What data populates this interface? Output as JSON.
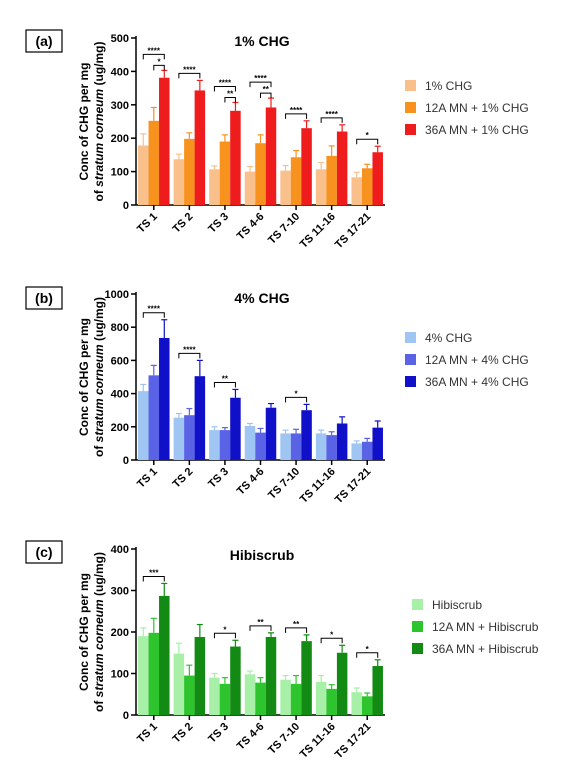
{
  "chart_data": [
    {
      "type": "bar",
      "panel_label": "(a)",
      "title": "1% CHG",
      "ylabel_line1": "Conc of CHG per mg",
      "ylabel_line2_prefix": "of ",
      "ylabel_line2_italic": "stratum corneum",
      "ylabel_line2_suffix": " (ug/mg)",
      "categories": [
        "TS 1",
        "TS 2",
        "TS 3",
        "TS 4-6",
        "TS 7-10",
        "TS 11-16",
        "TS 17-21"
      ],
      "ylim": [
        0,
        500
      ],
      "yticks": [
        0,
        100,
        200,
        300,
        400,
        500
      ],
      "series": [
        {
          "name": "1% CHG",
          "color": "#f9c08c",
          "values": [
            178,
            137,
            107,
            100,
            103,
            107,
            83
          ],
          "errors": [
            35,
            15,
            10,
            15,
            15,
            20,
            15
          ]
        },
        {
          "name": "12A MN + 1% CHG",
          "color": "#f7921e",
          "values": [
            252,
            198,
            190,
            185,
            143,
            147,
            110
          ],
          "errors": [
            40,
            18,
            20,
            25,
            20,
            30,
            12
          ]
        },
        {
          "name": "36A MN + 1% CHG",
          "color": "#ee1c1c",
          "values": [
            381,
            343,
            282,
            292,
            230,
            220,
            158
          ],
          "errors": [
            22,
            30,
            25,
            28,
            22,
            20,
            18
          ]
        }
      ],
      "significance": [
        {
          "category": "TS 1",
          "from": 0,
          "to": 2,
          "label": "****",
          "level": 0
        },
        {
          "category": "TS 1",
          "from": 1,
          "to": 2,
          "label": "*",
          "level": 1
        },
        {
          "category": "TS 2",
          "from": 0,
          "to": 2,
          "label": "****",
          "level": 0
        },
        {
          "category": "TS 3",
          "from": 0,
          "to": 2,
          "label": "****",
          "level": 0
        },
        {
          "category": "TS 3",
          "from": 1,
          "to": 2,
          "label": "**",
          "level": 1
        },
        {
          "category": "TS 4-6",
          "from": 0,
          "to": 2,
          "label": "****",
          "level": 0
        },
        {
          "category": "TS 4-6",
          "from": 1,
          "to": 2,
          "label": "**",
          "level": 1
        },
        {
          "category": "TS 7-10",
          "from": 0,
          "to": 2,
          "label": "****",
          "level": 0
        },
        {
          "category": "TS 11-16",
          "from": 0,
          "to": 2,
          "label": "****",
          "level": 0
        },
        {
          "category": "TS 17-21",
          "from": 0,
          "to": 2,
          "label": "*",
          "level": 0
        }
      ]
    },
    {
      "type": "bar",
      "panel_label": "(b)",
      "title": "4% CHG",
      "ylabel_line1": "Conc of CHG per mg",
      "ylabel_line2_prefix": "of ",
      "ylabel_line2_italic": "stratum corneum",
      "ylabel_line2_suffix": " (ug/mg)",
      "categories": [
        "TS 1",
        "TS 2",
        "TS 3",
        "TS 4-6",
        "TS 7-10",
        "TS 11-16",
        "TS 17-21"
      ],
      "ylim": [
        0,
        1000
      ],
      "yticks": [
        0,
        200,
        400,
        600,
        800,
        1000
      ],
      "series": [
        {
          "name": "4% CHG",
          "color": "#9fc5f3",
          "values": [
            415,
            255,
            180,
            205,
            160,
            160,
            100
          ],
          "errors": [
            40,
            25,
            20,
            15,
            20,
            20,
            15
          ]
        },
        {
          "name": "12A MN + 4% CHG",
          "color": "#5a62e6",
          "values": [
            510,
            270,
            180,
            165,
            160,
            150,
            110
          ],
          "errors": [
            60,
            40,
            15,
            25,
            25,
            20,
            20
          ]
        },
        {
          "name": "36A MN + 4% CHG",
          "color": "#1010c8",
          "values": [
            735,
            505,
            375,
            315,
            300,
            220,
            195
          ],
          "errors": [
            110,
            95,
            50,
            25,
            35,
            40,
            40
          ]
        }
      ],
      "significance": [
        {
          "category": "TS 1",
          "from": 0,
          "to": 2,
          "label": "****",
          "level": 0
        },
        {
          "category": "TS 2",
          "from": 0,
          "to": 2,
          "label": "****",
          "level": 0
        },
        {
          "category": "TS 3",
          "from": 0,
          "to": 2,
          "label": "**",
          "level": 0
        },
        {
          "category": "TS 7-10",
          "from": 0,
          "to": 2,
          "label": "*",
          "level": 0
        }
      ]
    },
    {
      "type": "bar",
      "panel_label": "(c)",
      "title": "Hibiscrub",
      "ylabel_line1": "Conc of CHG per mg",
      "ylabel_line2_prefix": "of ",
      "ylabel_line2_italic": "stratum corneum",
      "ylabel_line2_suffix": " (ug/mg)",
      "categories": [
        "TS 1",
        "TS 2",
        "TS 3",
        "TS 4-6",
        "TS 7-10",
        "TS 11-16",
        "TS 17-21"
      ],
      "ylim": [
        0,
        400
      ],
      "yticks": [
        0,
        100,
        200,
        300,
        400
      ],
      "series": [
        {
          "name": "Hibiscrub",
          "color": "#a8f0a8",
          "values": [
            190,
            148,
            90,
            98,
            85,
            80,
            55
          ],
          "errors": [
            20,
            25,
            10,
            8,
            10,
            15,
            10
          ]
        },
        {
          "name": "12A MN + Hibiscrub",
          "color": "#2ec42e",
          "values": [
            198,
            95,
            75,
            78,
            75,
            63,
            45
          ],
          "errors": [
            35,
            25,
            15,
            12,
            20,
            10,
            8
          ]
        },
        {
          "name": "36A MN + Hibiscrub",
          "color": "#138a13",
          "values": [
            287,
            188,
            165,
            188,
            178,
            150,
            118
          ],
          "errors": [
            30,
            30,
            15,
            10,
            15,
            18,
            15
          ]
        }
      ],
      "significance": [
        {
          "category": "TS 1",
          "from": 0,
          "to": 2,
          "label": "***",
          "level": 0
        },
        {
          "category": "TS 3",
          "from": 0,
          "to": 2,
          "label": "*",
          "level": 0
        },
        {
          "category": "TS 4-6",
          "from": 0,
          "to": 2,
          "label": "**",
          "level": 0
        },
        {
          "category": "TS 7-10",
          "from": 0,
          "to": 2,
          "label": "**",
          "level": 0
        },
        {
          "category": "TS 11-16",
          "from": 0,
          "to": 2,
          "label": "*",
          "level": 0
        },
        {
          "category": "TS 17-21",
          "from": 0,
          "to": 2,
          "label": "*",
          "level": 0
        }
      ]
    }
  ]
}
